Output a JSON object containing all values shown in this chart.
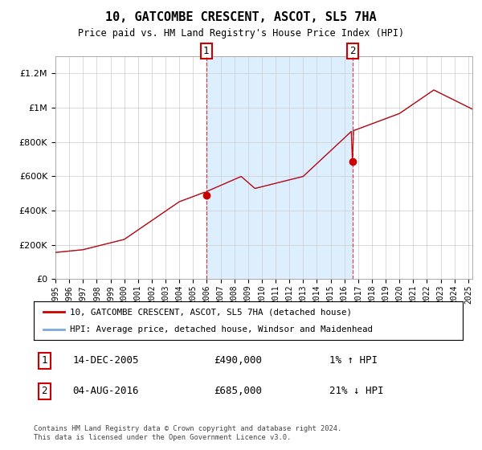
{
  "title": "10, GATCOMBE CRESCENT, ASCOT, SL5 7HA",
  "subtitle": "Price paid vs. HM Land Registry's House Price Index (HPI)",
  "hpi_label": "HPI: Average price, detached house, Windsor and Maidenhead",
  "property_label": "10, GATCOMBE CRESCENT, ASCOT, SL5 7HA (detached house)",
  "footer": "Contains HM Land Registry data © Crown copyright and database right 2024.\nThis data is licensed under the Open Government Licence v3.0.",
  "transaction1": {
    "label": "1",
    "date": "14-DEC-2005",
    "price": 490000,
    "hpi_rel": "1% ↑ HPI"
  },
  "transaction2": {
    "label": "2",
    "date": "04-AUG-2016",
    "price": 685000,
    "hpi_rel": "21% ↓ HPI"
  },
  "hpi_line_color": "#7aaadd",
  "property_line_color": "#cc0000",
  "shaded_region_color": "#ddeeff",
  "grid_color": "#cccccc",
  "annotation_box_color": "#cc0000",
  "ylim": [
    0,
    1300000
  ],
  "yticks": [
    0,
    200000,
    400000,
    600000,
    800000,
    1000000,
    1200000
  ],
  "t1_year": 2005.958,
  "t2_year": 2016.583,
  "t1_price": 490000,
  "t2_price": 685000
}
